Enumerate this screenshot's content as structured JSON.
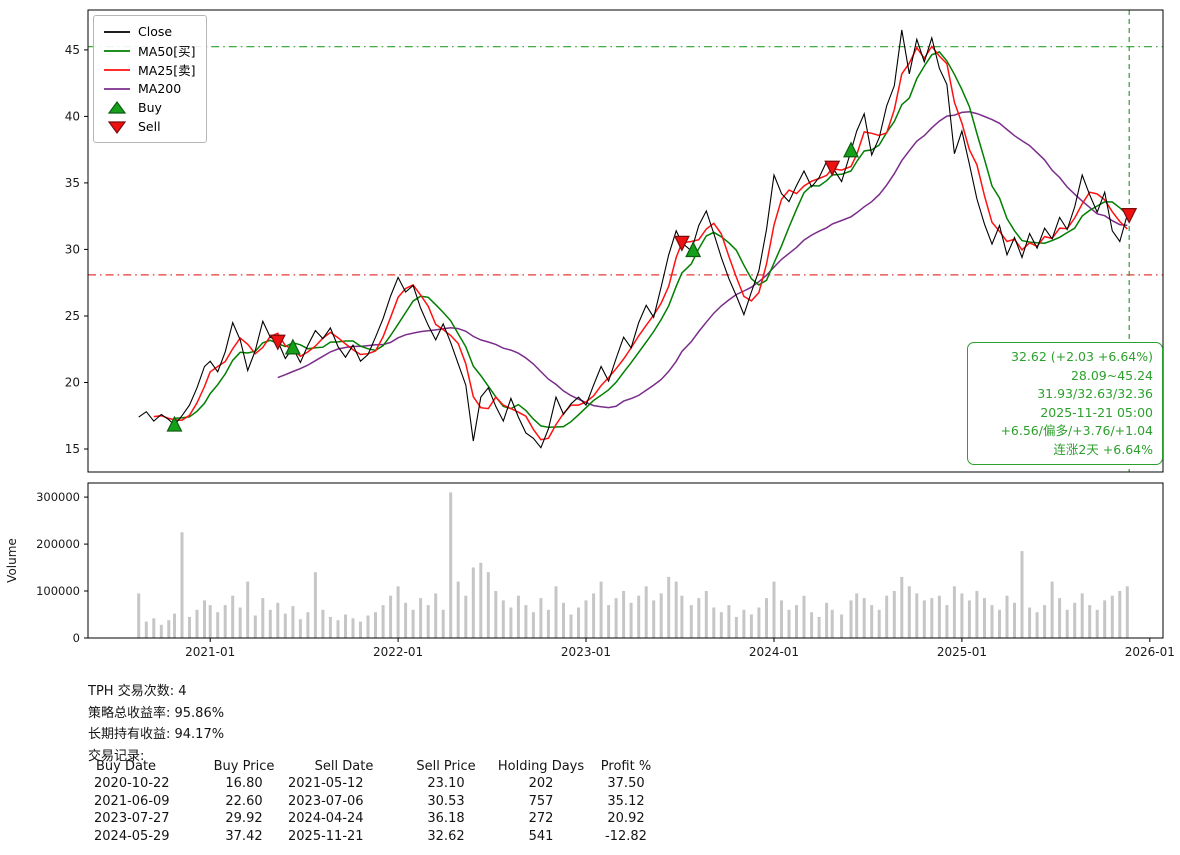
{
  "chart_data": {
    "type": "line",
    "title": "",
    "x_unit": "decimal_year",
    "xlim": [
      2020.35,
      2026.07
    ],
    "price_ylim": [
      13.27,
      48.0
    ],
    "volume_ylim": [
      0,
      330000
    ],
    "price_yticks": [
      15,
      20,
      25,
      30,
      35,
      40,
      45
    ],
    "volume_yticks": [
      {
        "v": 0,
        "label": "0"
      },
      {
        "v": 100000,
        "label": "100000"
      },
      {
        "v": 200000,
        "label": "200000"
      },
      {
        "v": 300000,
        "label": "300000"
      }
    ],
    "xticks": [
      {
        "x": 2021.0,
        "label": "2021-01"
      },
      {
        "x": 2022.0,
        "label": "2022-01"
      },
      {
        "x": 2023.0,
        "label": "2023-01"
      },
      {
        "x": 2024.0,
        "label": "2024-01"
      },
      {
        "x": 2025.0,
        "label": "2025-01"
      },
      {
        "x": 2026.0,
        "label": "2026-01"
      }
    ],
    "volume_label": "Volume",
    "colors": {
      "close": "#000000",
      "ma50": "#007f00",
      "ma25": "#ff1111",
      "ma200": "#7b2d8b",
      "volume": "#c6c6c6",
      "hline_upper": "#2ca02c",
      "hline_lower": "#e53935",
      "vline": "#2ca02c",
      "buy_fill": "#15a01a",
      "buy_edge": "#0b5d10",
      "sell_fill": "#ee1111",
      "sell_edge": "#7a0c0c"
    },
    "hlines": [
      {
        "y": 45.24,
        "color": "#2ca02c",
        "style": "dashdot",
        "name": "upper-band"
      },
      {
        "y": 28.09,
        "color": "#e53935",
        "style": "dashdot",
        "name": "lower-band"
      }
    ],
    "vline": {
      "x": 2025.89,
      "date": "2025-11-21",
      "color": "#2ca02c",
      "style": "dashed"
    },
    "ma": [
      {
        "key": "ma200",
        "label": "MA200",
        "color": "#7b2d8b",
        "window": 20
      },
      {
        "key": "ma50",
        "label": "MA50[买]",
        "color": "#007f00",
        "window": 6
      },
      {
        "key": "ma25",
        "label": "MA25[卖]",
        "color": "#ff1111",
        "window": 3
      }
    ],
    "markers": {
      "buys": [
        {
          "x": 2020.81,
          "price": 16.8
        },
        {
          "x": 2021.44,
          "price": 22.6
        },
        {
          "x": 2023.57,
          "price": 29.92
        },
        {
          "x": 2024.41,
          "price": 37.42
        }
      ],
      "sells": [
        {
          "x": 2021.36,
          "price": 23.1
        },
        {
          "x": 2023.51,
          "price": 30.53
        },
        {
          "x": 2024.31,
          "price": 36.18
        },
        {
          "x": 2025.89,
          "price": 32.62
        }
      ]
    },
    "legend": {
      "items": [
        {
          "label": "Close",
          "type": "line",
          "color": "#000000"
        },
        {
          "label": "MA50[买]",
          "type": "line",
          "color": "#007f00"
        },
        {
          "label": "MA25[卖]",
          "type": "line",
          "color": "#ff1111"
        },
        {
          "label": "MA200",
          "type": "line",
          "color": "#7b2d8b"
        },
        {
          "label": "Buy",
          "type": "triangle-up",
          "color": "#15a01a",
          "edge": "#0b5d10"
        },
        {
          "label": "Sell",
          "type": "triangle-down",
          "color": "#ee1111",
          "edge": "#7a0c0c"
        }
      ]
    },
    "annotation": {
      "lines": [
        "32.62 (+2.03 +6.64%)",
        "28.09~45.24",
        "31.93/32.63/32.36",
        "2025-11-21 05:00",
        "+6.56/偏多/+3.76/+1.04",
        "连涨2天 +6.64%"
      ]
    },
    "points": [
      [
        2020.62,
        17.4,
        95000
      ],
      [
        2020.66,
        17.8,
        35000
      ],
      [
        2020.7,
        17.1,
        42000
      ],
      [
        2020.74,
        17.6,
        28000
      ],
      [
        2020.78,
        17.2,
        38000
      ],
      [
        2020.81,
        16.8,
        52000
      ],
      [
        2020.85,
        17.5,
        225000
      ],
      [
        2020.89,
        18.3,
        45000
      ],
      [
        2020.93,
        19.6,
        60000
      ],
      [
        2020.97,
        21.2,
        80000
      ],
      [
        2021.0,
        21.6,
        70000
      ],
      [
        2021.04,
        20.8,
        55000
      ],
      [
        2021.08,
        22.3,
        70000
      ],
      [
        2021.12,
        24.5,
        90000
      ],
      [
        2021.16,
        23.2,
        65000
      ],
      [
        2021.2,
        20.9,
        120000
      ],
      [
        2021.24,
        22.4,
        48000
      ],
      [
        2021.28,
        24.6,
        85000
      ],
      [
        2021.32,
        23.4,
        60000
      ],
      [
        2021.36,
        23.1,
        75000
      ],
      [
        2021.4,
        21.8,
        52000
      ],
      [
        2021.44,
        22.6,
        68000
      ],
      [
        2021.48,
        21.5,
        40000
      ],
      [
        2021.52,
        22.8,
        55000
      ],
      [
        2021.56,
        23.9,
        140000
      ],
      [
        2021.6,
        23.3,
        60000
      ],
      [
        2021.64,
        24.1,
        45000
      ],
      [
        2021.68,
        22.7,
        38000
      ],
      [
        2021.72,
        21.9,
        50000
      ],
      [
        2021.76,
        22.8,
        42000
      ],
      [
        2021.8,
        21.6,
        35000
      ],
      [
        2021.84,
        22.1,
        48000
      ],
      [
        2021.88,
        23.4,
        55000
      ],
      [
        2021.92,
        24.8,
        70000
      ],
      [
        2021.96,
        26.5,
        90000
      ],
      [
        2022.0,
        27.9,
        110000
      ],
      [
        2022.04,
        26.8,
        75000
      ],
      [
        2022.08,
        27.3,
        60000
      ],
      [
        2022.12,
        25.6,
        85000
      ],
      [
        2022.16,
        24.3,
        70000
      ],
      [
        2022.2,
        23.2,
        95000
      ],
      [
        2022.24,
        24.4,
        60000
      ],
      [
        2022.28,
        23.0,
        310000
      ],
      [
        2022.32,
        21.4,
        120000
      ],
      [
        2022.36,
        19.8,
        90000
      ],
      [
        2022.4,
        15.6,
        150000
      ],
      [
        2022.44,
        18.9,
        160000
      ],
      [
        2022.48,
        19.6,
        140000
      ],
      [
        2022.52,
        18.2,
        100000
      ],
      [
        2022.56,
        17.1,
        80000
      ],
      [
        2022.6,
        18.8,
        65000
      ],
      [
        2022.64,
        17.4,
        90000
      ],
      [
        2022.68,
        16.2,
        70000
      ],
      [
        2022.72,
        15.8,
        55000
      ],
      [
        2022.76,
        15.1,
        85000
      ],
      [
        2022.8,
        16.5,
        60000
      ],
      [
        2022.84,
        18.9,
        110000
      ],
      [
        2022.88,
        17.6,
        75000
      ],
      [
        2022.92,
        18.4,
        50000
      ],
      [
        2022.96,
        18.9,
        65000
      ],
      [
        2023.0,
        18.3,
        80000
      ],
      [
        2023.04,
        19.8,
        95000
      ],
      [
        2023.08,
        21.2,
        120000
      ],
      [
        2023.12,
        20.1,
        70000
      ],
      [
        2023.16,
        21.8,
        85000
      ],
      [
        2023.2,
        23.4,
        100000
      ],
      [
        2023.24,
        22.6,
        75000
      ],
      [
        2023.28,
        24.5,
        90000
      ],
      [
        2023.32,
        25.8,
        110000
      ],
      [
        2023.36,
        24.9,
        80000
      ],
      [
        2023.4,
        27.2,
        95000
      ],
      [
        2023.44,
        29.6,
        130000
      ],
      [
        2023.48,
        31.4,
        120000
      ],
      [
        2023.51,
        30.5,
        90000
      ],
      [
        2023.56,
        29.9,
        70000
      ],
      [
        2023.6,
        31.8,
        85000
      ],
      [
        2023.64,
        32.9,
        100000
      ],
      [
        2023.68,
        31.2,
        65000
      ],
      [
        2023.72,
        29.4,
        55000
      ],
      [
        2023.76,
        27.8,
        70000
      ],
      [
        2023.8,
        26.5,
        45000
      ],
      [
        2023.84,
        25.1,
        60000
      ],
      [
        2023.88,
        26.8,
        50000
      ],
      [
        2023.92,
        28.4,
        65000
      ],
      [
        2023.96,
        31.5,
        85000
      ],
      [
        2024.0,
        35.6,
        120000
      ],
      [
        2024.04,
        34.2,
        80000
      ],
      [
        2024.08,
        33.6,
        60000
      ],
      [
        2024.12,
        34.8,
        70000
      ],
      [
        2024.16,
        35.9,
        90000
      ],
      [
        2024.2,
        34.7,
        55000
      ],
      [
        2024.24,
        35.4,
        45000
      ],
      [
        2024.28,
        36.6,
        75000
      ],
      [
        2024.31,
        36.2,
        60000
      ],
      [
        2024.36,
        35.1,
        50000
      ],
      [
        2024.41,
        37.4,
        80000
      ],
      [
        2024.44,
        38.9,
        95000
      ],
      [
        2024.48,
        40.2,
        85000
      ],
      [
        2024.52,
        37.1,
        70000
      ],
      [
        2024.56,
        38.4,
        60000
      ],
      [
        2024.6,
        40.8,
        90000
      ],
      [
        2024.64,
        42.3,
        100000
      ],
      [
        2024.68,
        46.5,
        130000
      ],
      [
        2024.72,
        43.2,
        110000
      ],
      [
        2024.76,
        45.8,
        95000
      ],
      [
        2024.8,
        44.1,
        80000
      ],
      [
        2024.84,
        45.9,
        85000
      ],
      [
        2024.88,
        43.6,
        90000
      ],
      [
        2024.92,
        42.4,
        70000
      ],
      [
        2024.96,
        37.2,
        110000
      ],
      [
        2025.0,
        38.9,
        95000
      ],
      [
        2025.04,
        36.4,
        80000
      ],
      [
        2025.08,
        33.8,
        100000
      ],
      [
        2025.12,
        31.9,
        85000
      ],
      [
        2025.16,
        30.4,
        70000
      ],
      [
        2025.2,
        31.8,
        60000
      ],
      [
        2025.24,
        29.6,
        90000
      ],
      [
        2025.28,
        30.9,
        75000
      ],
      [
        2025.32,
        29.4,
        185000
      ],
      [
        2025.36,
        31.2,
        65000
      ],
      [
        2025.4,
        30.1,
        55000
      ],
      [
        2025.44,
        31.6,
        70000
      ],
      [
        2025.48,
        30.8,
        120000
      ],
      [
        2025.52,
        32.4,
        85000
      ],
      [
        2025.56,
        31.5,
        60000
      ],
      [
        2025.6,
        33.2,
        75000
      ],
      [
        2025.64,
        35.6,
        95000
      ],
      [
        2025.68,
        34.1,
        70000
      ],
      [
        2025.72,
        32.8,
        60000
      ],
      [
        2025.76,
        34.3,
        80000
      ],
      [
        2025.8,
        31.4,
        90000
      ],
      [
        2025.84,
        30.6,
        100000
      ],
      [
        2025.88,
        32.62,
        110000
      ]
    ]
  },
  "stats": {
    "lines": [
      "TPH 交易次数: 4",
      "策略总收益率: 95.86%",
      "长期持有收益: 94.17%",
      "交易记录:"
    ],
    "table": {
      "headers": [
        "Buy Date",
        "Buy Price",
        "Sell Date",
        "Sell Price",
        "Holding Days",
        "Profit %"
      ],
      "rows": [
        [
          "2020-10-22",
          "16.80",
          "2021-05-12",
          "23.10",
          "202",
          "37.50"
        ],
        [
          "2021-06-09",
          "22.60",
          "2023-07-06",
          "30.53",
          "757",
          "35.12"
        ],
        [
          "2023-07-27",
          "29.92",
          "2024-04-24",
          "36.18",
          "272",
          "20.92"
        ],
        [
          "2024-05-29",
          "37.42",
          "2025-11-21",
          "32.62",
          "541",
          "-12.82"
        ]
      ]
    }
  }
}
